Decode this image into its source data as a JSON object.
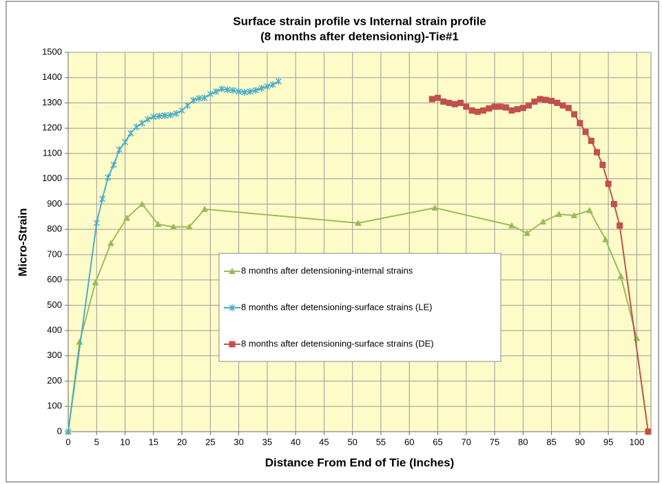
{
  "chart_data": {
    "type": "line",
    "title": [
      "Surface strain profile vs Internal strain profile",
      "(8 months after detensioning)-Tie#1"
    ],
    "x_label": "Distance From End of Tie (Inches)",
    "y_label": "Micro-Strain",
    "xlim": [
      0,
      102.5
    ],
    "ylim": [
      0,
      1500
    ],
    "xticks": [
      0,
      5,
      10,
      15,
      20,
      25,
      30,
      35,
      40,
      45,
      50,
      55,
      60,
      65,
      70,
      75,
      80,
      85,
      90,
      95,
      100
    ],
    "yticks": [
      0,
      100,
      200,
      300,
      400,
      500,
      600,
      700,
      800,
      900,
      1000,
      1100,
      1200,
      1300,
      1400,
      1500
    ],
    "grid": true,
    "series": [
      {
        "name": "8 months after detensioning-internal strains",
        "color": "#9bbb59",
        "marker": "triangle",
        "x": [
          0,
          2,
          4.8,
          7.5,
          10.3,
          13,
          15.8,
          18.5,
          21.3,
          24,
          51,
          64.5,
          78,
          80.7,
          83.5,
          86.3,
          89,
          91.7,
          94.5,
          97.2,
          100
        ],
        "values": [
          0,
          355,
          590,
          745,
          845,
          900,
          820,
          810,
          810,
          880,
          825,
          885,
          815,
          785,
          830,
          860,
          855,
          875,
          760,
          615,
          370
        ]
      },
      {
        "name": "8 months after detensioning-surface strains (LE)",
        "color": "#4bacc6",
        "marker": "star",
        "x": [
          0,
          5,
          6,
          7,
          8,
          9,
          10,
          11,
          12,
          13,
          14,
          15,
          16,
          17,
          18,
          19,
          20,
          21,
          22,
          23,
          24,
          25,
          26,
          27,
          28,
          29,
          30,
          31,
          32,
          33,
          34,
          35,
          36,
          37
        ],
        "values": [
          0,
          825,
          920,
          1005,
          1055,
          1115,
          1145,
          1180,
          1205,
          1220,
          1235,
          1245,
          1248,
          1250,
          1252,
          1258,
          1270,
          1290,
          1310,
          1318,
          1320,
          1335,
          1345,
          1355,
          1352,
          1350,
          1345,
          1342,
          1345,
          1350,
          1358,
          1365,
          1372,
          1385
        ]
      },
      {
        "name": "8 months after detensioning-surface strains (DE)",
        "color": "#c0504d",
        "marker": "square",
        "x": [
          64,
          65,
          66,
          67,
          68,
          69,
          70,
          71,
          72,
          73,
          74,
          75,
          76,
          77,
          78,
          79,
          80,
          81,
          82,
          83,
          84,
          85,
          86,
          87,
          88,
          89,
          90,
          91,
          92,
          93,
          94,
          95,
          96,
          97,
          102
        ],
        "values": [
          1315,
          1320,
          1305,
          1300,
          1295,
          1300,
          1285,
          1270,
          1265,
          1270,
          1278,
          1285,
          1285,
          1282,
          1270,
          1275,
          1280,
          1290,
          1305,
          1315,
          1312,
          1308,
          1300,
          1290,
          1280,
          1255,
          1220,
          1185,
          1150,
          1105,
          1055,
          980,
          900,
          815,
          0
        ]
      }
    ]
  }
}
